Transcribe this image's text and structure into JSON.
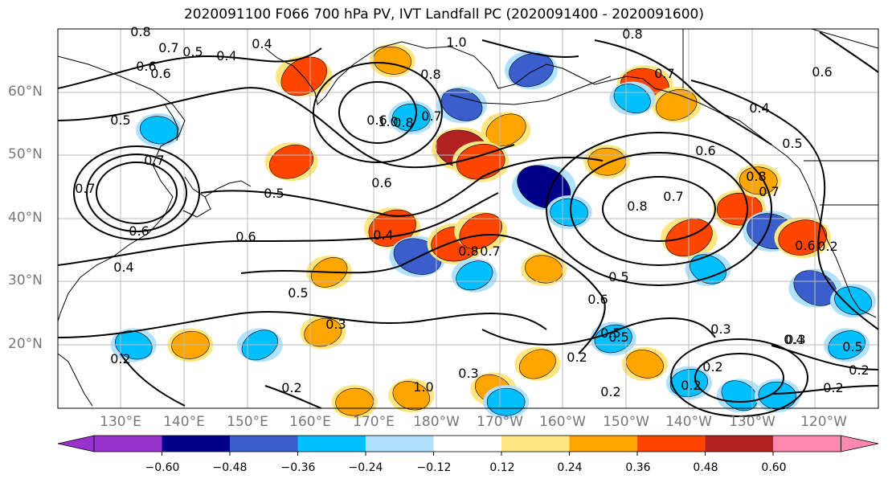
{
  "title": "2020091100 F066 700 hPa PV, IVT Landfall PC (2020091400 - 2020091600)",
  "lat_labels": [
    "60°N",
    "50°N",
    "40°N",
    "30°N",
    "20°N"
  ],
  "lon_labels": [
    "130°E",
    "140°E",
    "150°E",
    "160°E",
    "170°E",
    "180°W",
    "170°W",
    "160°W",
    "150°W",
    "140°W",
    "130°W",
    "120°W"
  ],
  "colorbar": {
    "ticks": [
      "−0.60",
      "−0.48",
      "−0.36",
      "−0.24",
      "−0.12",
      "0.12",
      "0.24",
      "0.36",
      "0.48",
      "0.60"
    ],
    "colors": [
      "#9932cc",
      "#00008b",
      "#3a5fcd",
      "#00bfff",
      "#b0e2ff",
      "#ffffff",
      "#ffe680",
      "#ffa500",
      "#ff4500",
      "#b22222",
      "#ff88b0"
    ]
  },
  "contour_labels": [
    "0.8",
    "0.7",
    "0.6",
    "0.5",
    "0.4",
    "0.6",
    "0.5",
    "0.7",
    "1.0",
    "0.8",
    "0.7",
    "0.6",
    "1.0",
    "0.8",
    "0.6",
    "0.5",
    "0.4",
    "0.7",
    "0.6",
    "0.5",
    "0.6",
    "0.4",
    "0.8",
    "0.7",
    "0.6",
    "0.4",
    "0.3",
    "0.2",
    "0.5",
    "0.8",
    "0.7",
    "0.6",
    "0.8",
    "0.7",
    "0.5",
    "0.6",
    "0.3",
    "0.2",
    "0.3",
    "0.4",
    "0.5",
    "0.2",
    "0.2",
    "0.2",
    "0.2",
    "0.2",
    "1.0",
    "0.8",
    "0.7",
    "0.4",
    "0.5",
    "0.2",
    "0.6",
    "0.3",
    "0.2",
    "0.5"
  ],
  "anomaly_blobs": [
    {
      "lon": 159,
      "lat": 62.5,
      "value": 0.45
    },
    {
      "lon": 173,
      "lat": 65,
      "value": 0.3
    },
    {
      "lon": 195,
      "lat": 63.5,
      "value": -0.4
    },
    {
      "lon": 184,
      "lat": 58,
      "value": -0.36
    },
    {
      "lon": 176,
      "lat": 56,
      "value": -0.3
    },
    {
      "lon": 191,
      "lat": 54,
      "value": 0.35
    },
    {
      "lon": 184,
      "lat": 51,
      "value": 0.5
    },
    {
      "lon": 187,
      "lat": 49,
      "value": 0.45
    },
    {
      "lon": 197,
      "lat": 45,
      "value": -0.55
    },
    {
      "lon": 201,
      "lat": 41,
      "value": -0.3
    },
    {
      "lon": 173,
      "lat": 38.5,
      "value": 0.45
    },
    {
      "lon": 177,
      "lat": 34,
      "value": -0.45
    },
    {
      "lon": 183,
      "lat": 36,
      "value": 0.45
    },
    {
      "lon": 187,
      "lat": 38,
      "value": 0.4
    },
    {
      "lon": 213,
      "lat": 61,
      "value": 0.45
    },
    {
      "lon": 218,
      "lat": 58,
      "value": 0.35
    },
    {
      "lon": 211,
      "lat": 59,
      "value": -0.3
    },
    {
      "lon": 228,
      "lat": 41.5,
      "value": 0.4
    },
    {
      "lon": 220,
      "lat": 37,
      "value": 0.45
    },
    {
      "lon": 233,
      "lat": 38,
      "value": -0.45
    },
    {
      "lon": 238,
      "lat": 37,
      "value": 0.45
    },
    {
      "lon": 240,
      "lat": 29,
      "value": -0.4
    },
    {
      "lon": 231,
      "lat": 46,
      "value": 0.3
    },
    {
      "lon": 157,
      "lat": 49,
      "value": 0.4
    },
    {
      "lon": 132,
      "lat": 20,
      "value": -0.3
    },
    {
      "lon": 141,
      "lat": 20,
      "value": 0.3
    },
    {
      "lon": 152,
      "lat": 20,
      "value": -0.3
    },
    {
      "lon": 136,
      "lat": 54,
      "value": -0.3
    },
    {
      "lon": 162,
      "lat": 22,
      "value": 0.3
    },
    {
      "lon": 189,
      "lat": 13,
      "value": 0.3
    },
    {
      "lon": 191,
      "lat": 11,
      "value": -0.3
    },
    {
      "lon": 196,
      "lat": 17,
      "value": 0.3
    },
    {
      "lon": 213,
      "lat": 17,
      "value": 0.3
    },
    {
      "lon": 220,
      "lat": 14,
      "value": -0.3
    },
    {
      "lon": 228,
      "lat": 12,
      "value": -0.3
    },
    {
      "lon": 234,
      "lat": 12,
      "value": -0.3
    },
    {
      "lon": 245,
      "lat": 20,
      "value": -0.3
    },
    {
      "lon": 176,
      "lat": 12,
      "value": 0.3
    },
    {
      "lon": 167,
      "lat": 11,
      "value": 0.3
    },
    {
      "lon": 163,
      "lat": 31.5,
      "value": 0.3
    },
    {
      "lon": 197,
      "lat": 32,
      "value": 0.3
    },
    {
      "lon": 208,
      "lat": 21,
      "value": -0.3
    },
    {
      "lon": 223,
      "lat": 32,
      "value": -0.3
    },
    {
      "lon": 207,
      "lat": 49,
      "value": 0.3
    },
    {
      "lon": 186,
      "lat": 31,
      "value": -0.3
    },
    {
      "lon": 246,
      "lat": 27,
      "value": -0.3
    }
  ]
}
